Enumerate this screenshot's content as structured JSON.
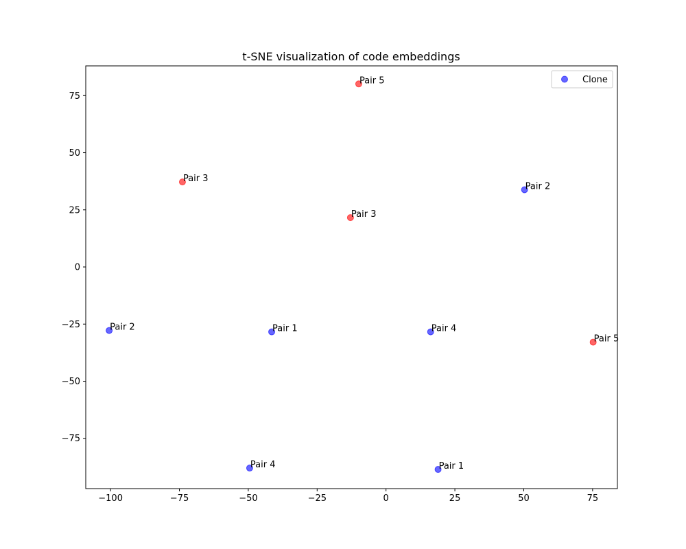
{
  "chart_data": {
    "type": "scatter",
    "title": "t-SNE visualization of code embeddings",
    "xlabel": "",
    "ylabel": "",
    "xlim": [
      -109,
      84
    ],
    "ylim": [
      -97,
      88
    ],
    "xticks": [
      -100,
      -75,
      -50,
      -25,
      0,
      25,
      50,
      75
    ],
    "yticks": [
      -75,
      -50,
      -25,
      0,
      25,
      50,
      75
    ],
    "grid": false,
    "legend_position": "top-right",
    "series": [
      {
        "name": "Clone",
        "color": "#0000ff",
        "points": [
          {
            "x": -100.5,
            "y": -27.8,
            "label": "Pair 2"
          },
          {
            "x": -41.5,
            "y": -28.4,
            "label": "Pair 1"
          },
          {
            "x": 16.2,
            "y": -28.4,
            "label": "Pair 4"
          },
          {
            "x": 50.3,
            "y": 33.8,
            "label": "Pair 2"
          },
          {
            "x": -49.5,
            "y": -88.0,
            "label": "Pair 4"
          },
          {
            "x": 18.9,
            "y": -88.6,
            "label": "Pair 1"
          }
        ]
      },
      {
        "color": "#ff0000",
        "points": [
          {
            "x": -9.9,
            "y": 80.1,
            "label": "Pair 5"
          },
          {
            "x": -73.9,
            "y": 37.2,
            "label": "Pair 3"
          },
          {
            "x": -12.9,
            "y": 21.6,
            "label": "Pair 3"
          },
          {
            "x": 75.2,
            "y": -32.9,
            "label": "Pair 5"
          }
        ]
      }
    ],
    "legend": [
      {
        "label": "Clone",
        "color": "#0000ff"
      }
    ]
  }
}
